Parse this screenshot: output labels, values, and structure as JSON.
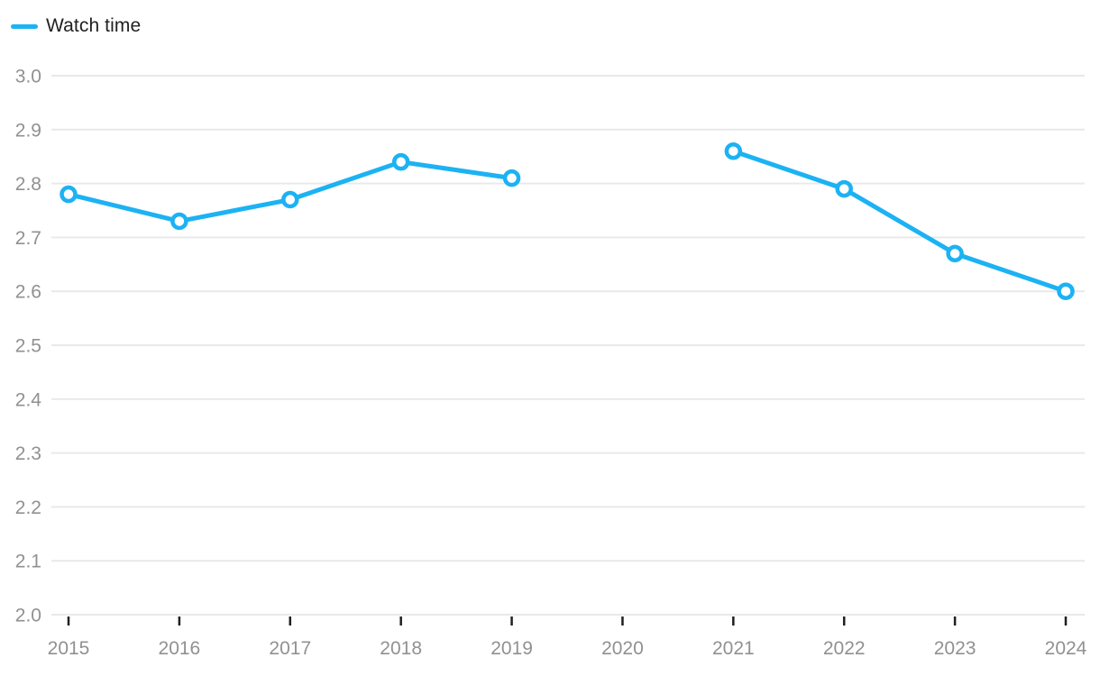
{
  "legend": {
    "label": "Watch time"
  },
  "style": {
    "line_color": "#1cb2f3",
    "marker_fill": "#ffffff",
    "grid_color": "#e9e9e9",
    "axis_label_color": "#919191",
    "tick_color": "#1f1f1f",
    "legend_text_color": "#212121",
    "background": "#ffffff"
  },
  "chart_data": {
    "type": "line",
    "title": "",
    "xlabel": "",
    "ylabel": "",
    "categories": [
      "2015",
      "2016",
      "2017",
      "2018",
      "2019",
      "2020",
      "2021",
      "2022",
      "2023",
      "2024"
    ],
    "series": [
      {
        "name": "Watch time",
        "values": [
          2.78,
          2.73,
          2.77,
          2.84,
          2.81,
          null,
          2.86,
          2.79,
          2.67,
          2.6
        ]
      }
    ],
    "ylim": [
      2.0,
      3.0
    ],
    "ytick_labels": [
      "3.0",
      "2.9",
      "2.8",
      "2.7",
      "2.6",
      "2.5",
      "2.4",
      "2.3",
      "2.2",
      "2.1",
      "2.0"
    ],
    "grid": true,
    "legend_position": "top-left",
    "marker": "open-circle",
    "gap_years": [
      "2020"
    ]
  }
}
